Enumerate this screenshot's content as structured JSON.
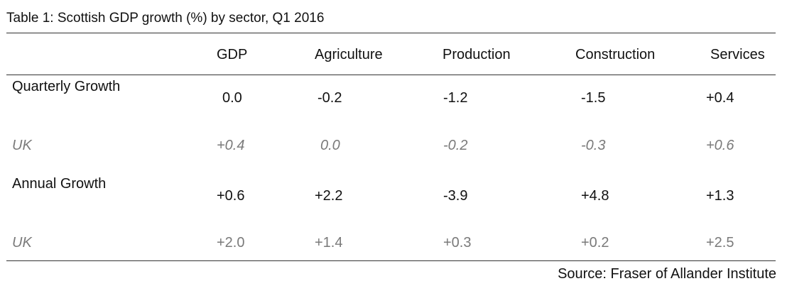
{
  "title": "Table 1: Scottish GDP growth (%) by sector, Q1 2016",
  "columns": [
    "GDP",
    "Agriculture",
    "Production",
    "Construction",
    "Services"
  ],
  "rows": [
    {
      "label": "Quarterly Growth",
      "values": [
        "0.0",
        "-0.2",
        "-1.2",
        "-1.5",
        "+0.4"
      ]
    },
    {
      "label": "UK",
      "values": [
        "+0.4",
        "0.0",
        "-0.2",
        "-0.3",
        "+0.6"
      ]
    },
    {
      "label": "Annual Growth",
      "values": [
        "+0.6",
        "+2.2",
        "-3.9",
        "+4.8",
        "+1.3"
      ]
    },
    {
      "label": "UK",
      "values": [
        "+2.0",
        "+1.4",
        "+0.3",
        "+0.2",
        "+2.5"
      ]
    }
  ],
  "source": "Source: Fraser of Allander Institute"
}
